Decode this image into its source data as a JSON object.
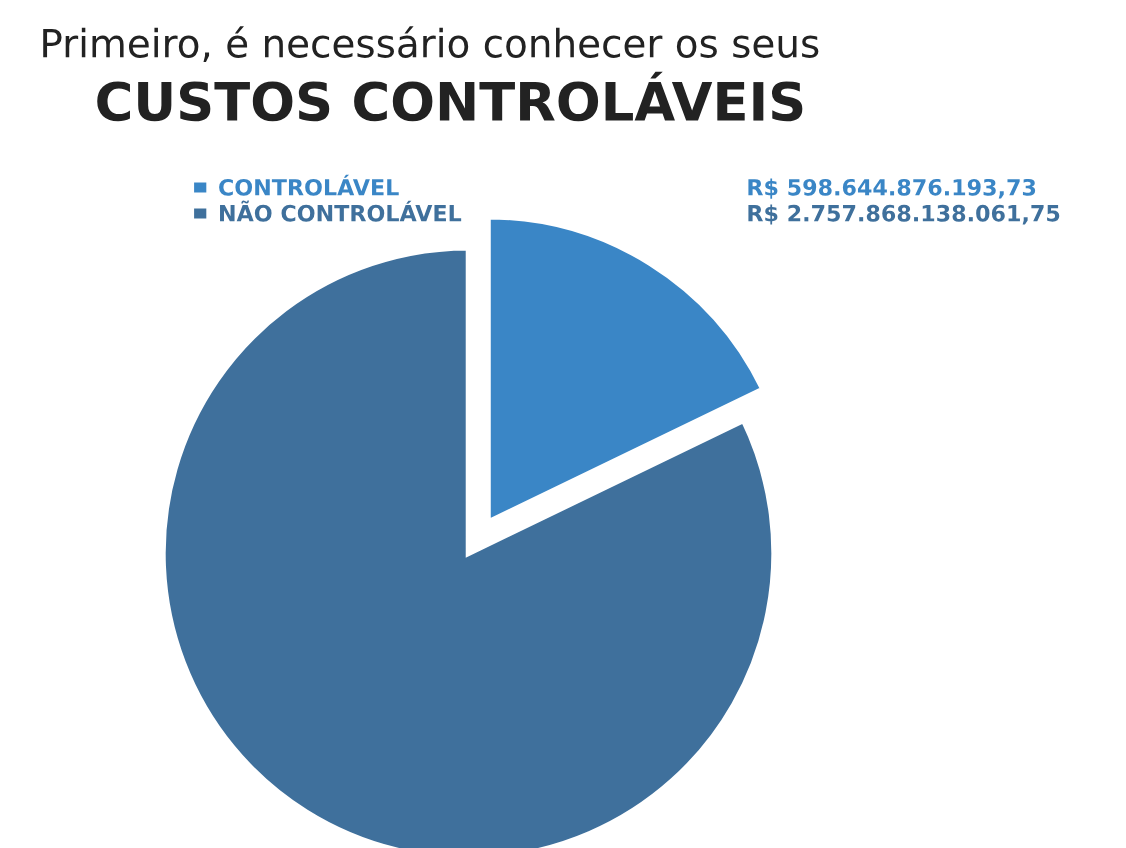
{
  "chart_data": {
    "type": "pie",
    "title": "Primeiro, é necessário conhecer os seus",
    "subtitle": "CUSTOS CONTROLÁVEIS",
    "categories": [
      "CONTROLÁVEL",
      "NÃO CONTROLÁVEL"
    ],
    "values": [
      598644876193.73,
      2757868138061.75
    ],
    "value_labels": [
      "R$ 598.644.876.193,73",
      "R$ 2.757.868.138.061,75"
    ],
    "colors": [
      "#3a86c6",
      "#3f709c"
    ],
    "legend": "top"
  }
}
